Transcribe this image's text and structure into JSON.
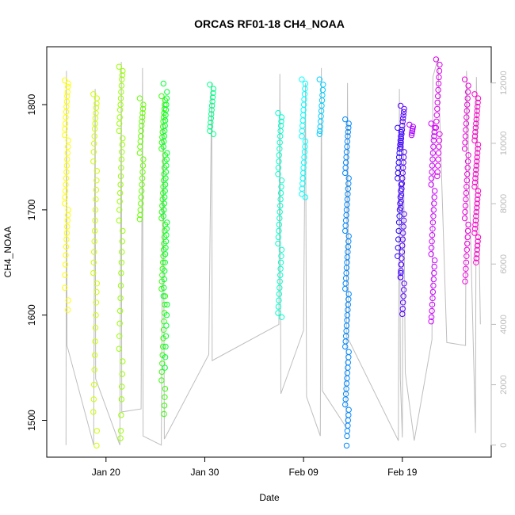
{
  "chart_data": {
    "type": "scatter",
    "title": "ORCAS RF01-18 CH4_NOAA",
    "xlabel": "Date",
    "ylabel": "CH4_NOAA",
    "xlim": [
      "2016-01-14",
      "2016-02-28"
    ],
    "ylim": [
      1465,
      1855
    ],
    "y_ticks": [
      1500,
      1600,
      1700,
      1800
    ],
    "x_ticks": [
      "Jan 20",
      "Jan 30",
      "Feb 09",
      "Feb 19"
    ],
    "x_tick_dates": [
      "2016-01-20",
      "2016-01-30",
      "2016-02-09",
      "2016-02-19"
    ],
    "y2_ticks": [
      0,
      2000,
      4000,
      6000,
      8000,
      10000,
      12000
    ],
    "y2lim": [
      -400,
      13200
    ],
    "y2_color": "#bbbbbb",
    "grid": false,
    "legend": "none",
    "altitude_line_color": "#bebebe",
    "altitude_trace": [
      [
        "2016-01-15.95",
        0
      ],
      [
        "2016-01-16.00",
        12400
      ],
      [
        "2016-01-16.05",
        3300
      ],
      [
        "2016-01-18.75",
        0
      ],
      [
        "2016-01-18.90",
        11800
      ],
      [
        "2016-01-18.95",
        2200
      ],
      [
        "2016-01-21.40",
        0
      ],
      [
        "2016-01-21.55",
        12700
      ],
      [
        "2016-01-21.60",
        1100
      ],
      [
        "2016-01-23.55",
        1200
      ],
      [
        "2016-01-23.70",
        12500
      ],
      [
        "2016-01-23.75",
        300
      ],
      [
        "2016-01-25.60",
        0
      ],
      [
        "2016-01-25.80",
        11500
      ],
      [
        "2016-01-25.90",
        200
      ],
      [
        "2016-01-30.40",
        3000
      ],
      [
        "2016-01-30.70",
        12000
      ],
      [
        "2016-01-30.75",
        2800
      ],
      [
        "2016-02-06.50",
        4000
      ],
      [
        "2016-02-06.60",
        12300
      ],
      [
        "2016-02-06.70",
        1700
      ],
      [
        "2016-02-09.00",
        3800
      ],
      [
        "2016-02-09.20",
        12000
      ],
      [
        "2016-02-09.30",
        1600
      ],
      [
        "2016-02-10.70",
        300
      ],
      [
        "2016-02-10.80",
        12500
      ],
      [
        "2016-02-10.90",
        1800
      ],
      [
        "2016-02-13.30",
        600
      ],
      [
        "2016-02-13.45",
        12000
      ],
      [
        "2016-02-13.55",
        3500
      ],
      [
        "2016-02-18.60",
        150
      ],
      [
        "2016-02-18.70",
        11800
      ],
      [
        "2016-02-18.80",
        2200
      ],
      [
        "2016-02-19.00",
        250
      ],
      [
        "2016-02-19.10",
        11000
      ],
      [
        "2016-02-19.30",
        2400
      ],
      [
        "2016-02-20.20",
        150
      ],
      [
        "2016-02-22.00",
        3500
      ],
      [
        "2016-02-22.10",
        12200
      ],
      [
        "2016-02-22.60",
        12800
      ],
      [
        "2016-02-23.50",
        3400
      ],
      [
        "2016-02-25.40",
        3300
      ],
      [
        "2016-02-25.50",
        12400
      ],
      [
        "2016-02-26.40",
        400
      ],
      [
        "2016-02-26.50",
        12200
      ],
      [
        "2016-02-26.90",
        4000
      ]
    ],
    "series": [
      {
        "date": "2016-01-16.0",
        "color": "#ffff00",
        "points": [
          [
            1823,
            1820,
            1817,
            1812,
            1808,
            1803,
            1798,
            1793,
            1788,
            1782,
            1777,
            1771,
            1766,
            1760,
            1754,
            1748,
            1742,
            1736,
            1730,
            1724,
            1718,
            1712,
            1706,
            1700,
            1695,
            1690,
            1684,
            1678,
            1672,
            1665,
            1657,
            1648,
            1638,
            1626,
            1614,
            1605
          ]
        ]
      },
      {
        "date": "2016-01-18.9",
        "color": "#ccff00",
        "points": [
          [
            1810,
            1806,
            1801,
            1797,
            1792,
            1787,
            1782,
            1777,
            1770,
            1763,
            1755,
            1746,
            1737,
            1728,
            1719,
            1710,
            1700,
            1690,
            1680,
            1670,
            1660,
            1650,
            1640,
            1630,
            1622,
            1612,
            1600,
            1588,
            1575,
            1562,
            1548,
            1534,
            1520,
            1508,
            1490,
            1476
          ]
        ]
      },
      {
        "date": "2016-01-21.5",
        "color": "#99ff00",
        "points": [
          [
            1836,
            1832,
            1828,
            1824,
            1818,
            1812,
            1806,
            1800,
            1795,
            1788,
            1782,
            1775,
            1768,
            1762,
            1755,
            1748,
            1740,
            1732,
            1724,
            1716,
            1708,
            1700,
            1690,
            1680,
            1670,
            1660,
            1650,
            1640,
            1628,
            1616,
            1604,
            1592,
            1580,
            1568,
            1556,
            1544,
            1532,
            1520,
            1505,
            1490,
            1483
          ]
        ]
      },
      {
        "date": "2016-01-23.6",
        "color": "#66ff00",
        "points": [
          [
            1806,
            1800,
            1796,
            1792,
            1788,
            1784,
            1780,
            1775,
            1770,
            1765,
            1760,
            1754,
            1748,
            1742,
            1736,
            1730,
            1724,
            1718,
            1712,
            1706,
            1700,
            1695,
            1691
          ]
        ]
      },
      {
        "date": "2016-01-25.8",
        "color": "#33ff00",
        "points": [
          [
            1808,
            1804,
            1800,
            1796,
            1792,
            1788,
            1784,
            1779,
            1774,
            1769,
            1764,
            1758,
            1752,
            1746,
            1740,
            1734,
            1728,
            1722,
            1716,
            1710,
            1704,
            1698,
            1692,
            1686,
            1680,
            1674,
            1668,
            1662,
            1656,
            1650,
            1644,
            1638,
            1632,
            1625,
            1618,
            1610,
            1602,
            1594,
            1586,
            1578,
            1570,
            1562,
            1554,
            1546,
            1538,
            1530,
            1522,
            1514,
            1506
          ]
        ]
      },
      {
        "date": "2016-01-26.0",
        "color": "#00ff33",
        "points": [
          [
            1820,
            1812,
            1806,
            1800,
            1795,
            1790,
            1785,
            1780,
            1775,
            1770,
            1765,
            1760,
            1754,
            1748,
            1742,
            1736,
            1730,
            1724,
            1718,
            1712,
            1706,
            1700,
            1694,
            1688,
            1682,
            1676,
            1670,
            1664,
            1658,
            1650,
            1642,
            1634,
            1626,
            1618,
            1610,
            1600,
            1590,
            1580,
            1570,
            1560,
            1550
          ]
        ]
      },
      {
        "date": "2016-01-30.7",
        "color": "#00ff88",
        "points": [
          [
            1819,
            1815,
            1811,
            1807,
            1803,
            1799,
            1795,
            1791,
            1787,
            1783,
            1779,
            1775,
            1772
          ]
        ]
      },
      {
        "date": "2016-02-06.6",
        "color": "#00ffcc",
        "points": [
          [
            1792,
            1788,
            1784,
            1780,
            1775,
            1770,
            1764,
            1758,
            1752,
            1746,
            1740,
            1734,
            1728,
            1722,
            1716,
            1710,
            1704,
            1698,
            1692,
            1686,
            1680,
            1674,
            1668,
            1662,
            1656,
            1650,
            1644,
            1638,
            1632,
            1626,
            1620,
            1614,
            1608,
            1602,
            1598
          ]
        ]
      },
      {
        "date": "2016-02-09.0",
        "color": "#00ffff",
        "points": [
          [
            1824,
            1820,
            1815,
            1810,
            1805,
            1800,
            1795,
            1790,
            1785,
            1780,
            1775,
            1770,
            1765,
            1760,
            1755,
            1750,
            1745,
            1740,
            1735,
            1730,
            1725,
            1720,
            1715,
            1712
          ]
        ]
      },
      {
        "date": "2016-02-10.8",
        "color": "#00ccff",
        "points": [
          [
            1824,
            1819,
            1814,
            1809,
            1804,
            1799,
            1794,
            1789,
            1784,
            1779,
            1775,
            1772
          ]
        ]
      },
      {
        "date": "2016-02-13.4",
        "color": "#0088ff",
        "points": [
          [
            1786,
            1782,
            1778,
            1774,
            1770,
            1765,
            1760,
            1755,
            1750,
            1745,
            1740,
            1735,
            1730,
            1725,
            1720,
            1715,
            1710,
            1705,
            1700,
            1695,
            1690,
            1685,
            1680,
            1675,
            1670,
            1665,
            1660,
            1655,
            1650,
            1645,
            1640,
            1635,
            1630,
            1625,
            1620,
            1615,
            1610,
            1605,
            1600,
            1595,
            1590,
            1585,
            1580,
            1575,
            1570,
            1565,
            1560,
            1555,
            1550,
            1545,
            1540,
            1535,
            1530,
            1525,
            1520,
            1515,
            1510,
            1505,
            1500,
            1495,
            1490,
            1485,
            1476
          ]
        ]
      },
      {
        "date": "2016-02-18.7",
        "color": "#2200ff",
        "points": [
          [
            1778,
            1774,
            1770,
            1766,
            1762,
            1758,
            1754,
            1750,
            1745,
            1740,
            1735,
            1730,
            1724,
            1718,
            1712,
            1706,
            1700,
            1694,
            1688,
            1680,
            1672,
            1664,
            1656,
            1648,
            1640,
            1636
          ]
        ]
      },
      {
        "date": "2016-02-19.0",
        "color": "#5500ff",
        "points": [
          [
            1799,
            1796,
            1793,
            1790,
            1787,
            1784,
            1780,
            1776,
            1772,
            1768,
            1764,
            1760,
            1755,
            1750,
            1745,
            1740,
            1735,
            1730,
            1725,
            1720,
            1714,
            1708,
            1702,
            1696,
            1690,
            1684,
            1678,
            1672,
            1666,
            1660,
            1654,
            1648,
            1642,
            1636,
            1630,
            1624,
            1618,
            1612,
            1606,
            1601
          ]
        ]
      },
      {
        "date": "2016-02-19.9",
        "color": "#aa00ff",
        "points": [
          [
            1781,
            1779,
            1777,
            1775,
            1773,
            1771
          ]
        ]
      },
      {
        "date": "2016-02-22.1",
        "color": "#cc00ff",
        "points": [
          [
            1782,
            1778,
            1774,
            1770,
            1766,
            1760,
            1754,
            1748,
            1742,
            1736,
            1730,
            1724,
            1718,
            1712,
            1706,
            1700,
            1694,
            1688,
            1682,
            1676,
            1670,
            1664,
            1658,
            1652,
            1646,
            1640,
            1634,
            1628,
            1622,
            1616,
            1610,
            1604,
            1598,
            1594
          ]
        ]
      },
      {
        "date": "2016-02-22.6",
        "color": "#dd00ee",
        "points": [
          [
            1843,
            1838,
            1832,
            1826,
            1820,
            1814,
            1808,
            1802,
            1796,
            1790,
            1784,
            1778,
            1772,
            1766,
            1760,
            1754,
            1748,
            1742,
            1736,
            1732
          ]
        ]
      },
      {
        "date": "2016-02-25.5",
        "color": "#ee00dd",
        "points": [
          [
            1824,
            1818,
            1812,
            1806,
            1800,
            1794,
            1788,
            1782,
            1776,
            1770,
            1764,
            1758,
            1752,
            1746,
            1740,
            1734,
            1728,
            1722,
            1716,
            1710,
            1704,
            1698,
            1692,
            1686,
            1680,
            1674,
            1668,
            1662,
            1656,
            1650,
            1644,
            1638,
            1632
          ]
        ]
      },
      {
        "date": "2016-02-26.5",
        "color": "#ff00cc",
        "points": [
          [
            1810,
            1806,
            1802,
            1798,
            1794,
            1790,
            1786,
            1782,
            1778,
            1774,
            1770,
            1766,
            1762,
            1758,
            1754,
            1750,
            1746,
            1742,
            1738,
            1734,
            1730,
            1726,
            1722,
            1718,
            1714,
            1710,
            1706,
            1702,
            1698,
            1694,
            1690,
            1686,
            1682,
            1678,
            1674,
            1670,
            1666,
            1662,
            1658,
            1654,
            1650
          ]
        ]
      }
    ]
  }
}
